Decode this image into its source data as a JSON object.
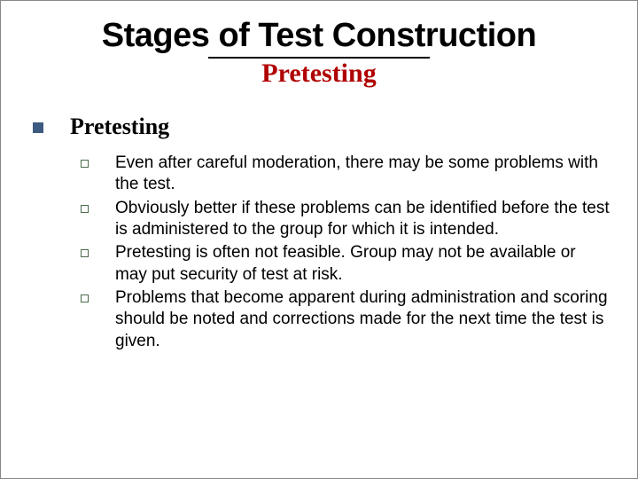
{
  "colors": {
    "background": "#ffffff",
    "title_color": "#000000",
    "subtitle_color": "#b00000",
    "section_bullet_color": "#3d5a80",
    "sub_bullet_border": "#4a6a4a",
    "body_text_color": "#000000",
    "rule_color": "#000000"
  },
  "typography": {
    "title_fontsize": 38,
    "title_weight": 900,
    "subtitle_fontsize": 30,
    "section_fontsize": 26,
    "body_fontsize": 19
  },
  "title": "Stages of Test Construction",
  "subtitle": "Pretesting",
  "section": {
    "heading": "Pretesting",
    "items": [
      "Even after careful moderation, there may be some problems with the test.",
      "Obviously better if these problems can be identified before the test is administered to the group for which it is intended.",
      "Pretesting is often not feasible. Group may not be available or may put security of test at risk.",
      "Problems that become apparent during administration and scoring should be noted and corrections made for the next time the test is given."
    ]
  }
}
